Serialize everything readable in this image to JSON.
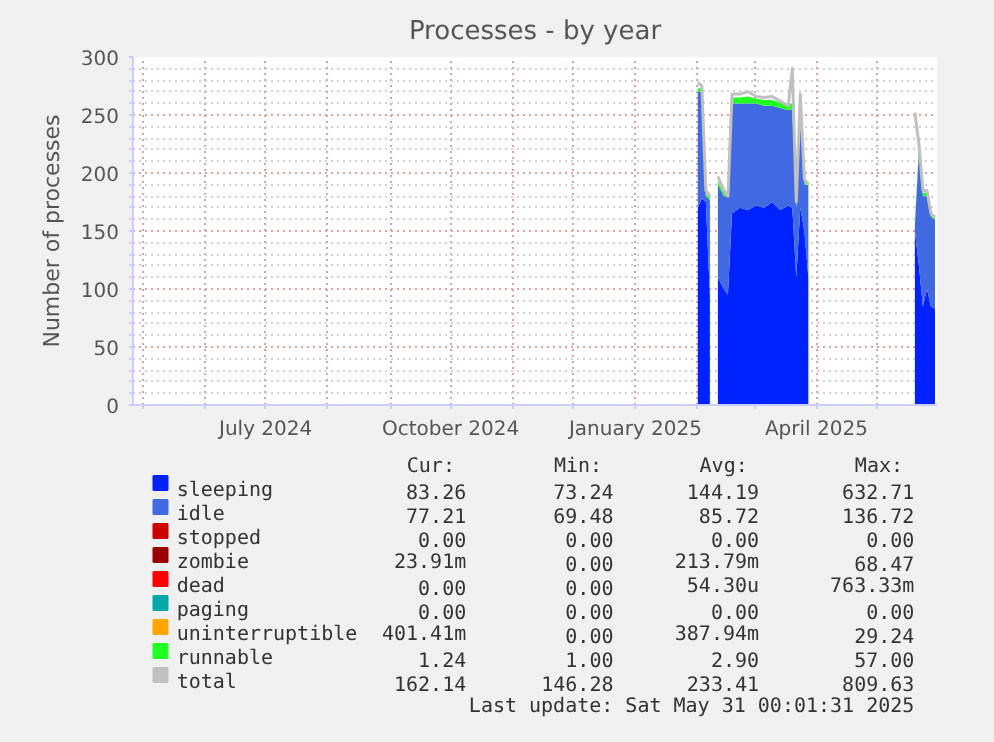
{
  "chart_data": {
    "type": "area",
    "stacked": true,
    "title": "Processes - by year",
    "ylabel": "Number of processes",
    "x": [
      "2025-02-01",
      "2025-02-03",
      "2025-02-05",
      "2025-02-07",
      "2025-02-09",
      "2025-02-11",
      "2025-02-14",
      "2025-02-16",
      "2025-02-18",
      "2025-02-22",
      "2025-02-26",
      "2025-03-02",
      "2025-03-06",
      "2025-03-10",
      "2025-03-14",
      "2025-03-18",
      "2025-03-20",
      "2025-03-22",
      "2025-03-24",
      "2025-03-26",
      "2025-03-28",
      "2025-04-15",
      "2025-05-20",
      "2025-05-22",
      "2025-05-24",
      "2025-05-26",
      "2025-05-28",
      "2025-05-30"
    ],
    "series": [
      {
        "name": "sleeping",
        "color": "#0022ff",
        "values": [
          170,
          178,
          175,
          95,
          null,
          110,
          100,
          95,
          165,
          170,
          168,
          172,
          170,
          175,
          168,
          172,
          170,
          110,
          170,
          150,
          110,
          null,
          150,
          120,
          85,
          100,
          85,
          83
        ]
      },
      {
        "name": "idle",
        "color": "#4169e1",
        "values": [
          100,
          92,
          5,
          82,
          null,
          80,
          80,
          85,
          95,
          90,
          92,
          88,
          88,
          83,
          88,
          82,
          85,
          60,
          92,
          40,
          80,
          null,
          5,
          100,
          95,
          80,
          77,
          77
        ]
      },
      {
        "name": "stopped",
        "color": "#cc0000",
        "values": [
          null,
          null,
          null,
          null,
          null,
          null,
          null,
          null,
          null,
          null,
          null,
          null,
          null,
          null,
          null,
          null,
          null,
          null,
          null,
          null,
          null,
          null,
          null,
          null,
          null,
          null,
          null,
          null
        ]
      },
      {
        "name": "zombie",
        "color": "#990000",
        "values": [
          null,
          null,
          null,
          null,
          null,
          null,
          null,
          null,
          null,
          null,
          null,
          null,
          null,
          null,
          null,
          null,
          null,
          null,
          null,
          null,
          null,
          null,
          null,
          null,
          null,
          null,
          null,
          null
        ]
      },
      {
        "name": "dead",
        "color": "#ff0000",
        "values": [
          null,
          null,
          null,
          null,
          null,
          null,
          null,
          null,
          null,
          null,
          null,
          null,
          null,
          null,
          null,
          null,
          null,
          null,
          null,
          null,
          null,
          null,
          null,
          null,
          null,
          null,
          null,
          null
        ]
      },
      {
        "name": "paging",
        "color": "#00aaaa",
        "values": [
          null,
          null,
          null,
          null,
          null,
          null,
          null,
          null,
          null,
          null,
          null,
          null,
          null,
          null,
          null,
          null,
          null,
          null,
          null,
          null,
          null,
          null,
          null,
          null,
          null,
          null,
          null,
          null
        ]
      },
      {
        "name": "uninterruptible",
        "color": "#ffa500",
        "values": [
          null,
          null,
          null,
          null,
          null,
          null,
          null,
          null,
          null,
          null,
          null,
          null,
          null,
          null,
          null,
          null,
          null,
          null,
          null,
          null,
          null,
          null,
          null,
          null,
          null,
          null,
          null,
          null
        ]
      },
      {
        "name": "runnable",
        "color": "#22ff22",
        "values": [
          3,
          3,
          2,
          2,
          null,
          3,
          3,
          3,
          5,
          5,
          6,
          4,
          5,
          5,
          5,
          6,
          5,
          3,
          5,
          3,
          3,
          null,
          3,
          3,
          3,
          3,
          2,
          1
        ]
      },
      {
        "name": "total",
        "type": "line",
        "color": "#c0c0c0",
        "values": [
          278,
          275,
          185,
          180,
          null,
          197,
          185,
          180,
          268,
          268,
          270,
          266,
          265,
          266,
          262,
          258,
          290,
          175,
          268,
          195,
          190,
          null,
          252,
          225,
          185,
          185,
          165,
          162
        ]
      }
    ],
    "xlim": [
      "2024-04-26",
      "2025-05-31"
    ],
    "xticks": [
      {
        "value": "2024-05-01",
        "label": null
      },
      {
        "value": "2024-06-01",
        "label": null
      },
      {
        "value": "2024-07-01",
        "label": "July 2024"
      },
      {
        "value": "2024-08-01",
        "label": null
      },
      {
        "value": "2024-09-01",
        "label": null
      },
      {
        "value": "2024-10-01",
        "label": "October 2024"
      },
      {
        "value": "2024-11-01",
        "label": null
      },
      {
        "value": "2024-12-01",
        "label": null
      },
      {
        "value": "2025-01-01",
        "label": "January 2025"
      },
      {
        "value": "2025-02-01",
        "label": null
      },
      {
        "value": "2025-03-01",
        "label": null
      },
      {
        "value": "2025-04-01",
        "label": "April 2025"
      },
      {
        "value": "2025-05-01",
        "label": null
      }
    ],
    "ylim": [
      0,
      300
    ],
    "yticks": [
      0,
      {
        "value": 10,
        "label": null
      },
      {
        "value": 20,
        "label": null
      },
      {
        "value": 30,
        "label": null
      },
      {
        "value": 40,
        "label": null
      },
      50,
      {
        "value": 60,
        "label": null
      },
      {
        "value": 70,
        "label": null
      },
      {
        "value": 80,
        "label": null
      },
      {
        "value": 90,
        "label": null
      },
      100,
      {
        "value": 110,
        "label": null
      },
      {
        "value": 120,
        "label": null
      },
      {
        "value": 130,
        "label": null
      },
      {
        "value": 140,
        "label": null
      },
      150,
      {
        "value": 160,
        "label": null
      },
      {
        "value": 170,
        "label": null
      },
      {
        "value": 180,
        "label": null
      },
      {
        "value": 190,
        "label": null
      },
      200,
      {
        "value": 210,
        "label": null
      },
      {
        "value": 220,
        "label": null
      },
      {
        "value": 230,
        "label": null
      },
      {
        "value": 240,
        "label": null
      },
      250,
      {
        "value": 260,
        "label": null
      },
      {
        "value": 270,
        "label": null
      },
      {
        "value": 280,
        "label": null
      },
      {
        "value": 290,
        "label": null
      },
      300
    ],
    "grid": true,
    "legend": "bottom",
    "annotations": [
      "Cur:",
      "Min:",
      "Avg:",
      "Max:",
      "83.26",
      "73.24",
      "144.19",
      "632.71",
      "77.21",
      "69.48",
      "85.72",
      "136.72",
      "0.00",
      "0.00",
      "0.00",
      "0.00",
      "23.91m",
      "0.00",
      "213.79m",
      "68.47",
      "0.00",
      "0.00",
      "54.30u",
      "763.33m",
      "0.00",
      "0.00",
      "0.00",
      "0.00",
      "401.41m",
      "0.00",
      "387.94m",
      "29.24",
      "1.24",
      "1.00",
      "2.90",
      "57.00",
      "162.14",
      "146.28",
      "233.41",
      "809.63",
      "Last update: Sat May 31 00:01:31 2025"
    ]
  }
}
